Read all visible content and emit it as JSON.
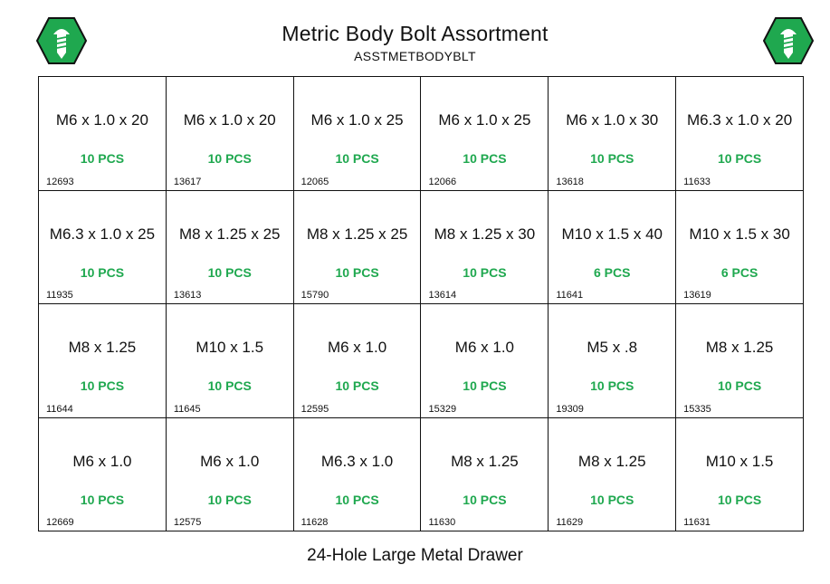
{
  "header": {
    "title": "Metric Body Bolt Assortment",
    "sku": "ASSTMETBODYBLT",
    "logo_icon": "screw-hex-icon",
    "logo_color": "#1fa84f"
  },
  "accent_color": "#1fa84f",
  "drawer": {
    "cells": [
      {
        "size": "M6 x 1.0 x 20",
        "qty": "10 PCS",
        "part": "12693"
      },
      {
        "size": "M6 x 1.0 x 20",
        "qty": "10 PCS",
        "part": "13617"
      },
      {
        "size": "M6 x 1.0 x 25",
        "qty": "10 PCS",
        "part": "12065"
      },
      {
        "size": "M6 x 1.0 x 25",
        "qty": "10 PCS",
        "part": "12066"
      },
      {
        "size": "M6 x 1.0 x 30",
        "qty": "10 PCS",
        "part": "13618"
      },
      {
        "size": "M6.3 x 1.0 x 20",
        "qty": "10 PCS",
        "part": "11633"
      },
      {
        "size": "M6.3 x 1.0 x 25",
        "qty": "10 PCS",
        "part": "11935"
      },
      {
        "size": "M8 x 1.25 x 25",
        "qty": "10 PCS",
        "part": "13613"
      },
      {
        "size": "M8 x 1.25 x 25",
        "qty": "10 PCS",
        "part": "15790"
      },
      {
        "size": "M8 x 1.25 x 30",
        "qty": "10 PCS",
        "part": "13614"
      },
      {
        "size": "M10 x 1.5 x 40",
        "qty": "6 PCS",
        "part": "11641"
      },
      {
        "size": "M10 x 1.5 x 30",
        "qty": "6 PCS",
        "part": "13619"
      },
      {
        "size": "M8 x 1.25",
        "qty": "10 PCS",
        "part": "11644"
      },
      {
        "size": "M10 x 1.5",
        "qty": "10 PCS",
        "part": "11645"
      },
      {
        "size": "M6 x 1.0",
        "qty": "10 PCS",
        "part": "12595"
      },
      {
        "size": "M6 x 1.0",
        "qty": "10 PCS",
        "part": "15329"
      },
      {
        "size": "M5 x .8",
        "qty": "10 PCS",
        "part": "19309"
      },
      {
        "size": "M8 x 1.25",
        "qty": "10 PCS",
        "part": "15335"
      },
      {
        "size": "M6 x 1.0",
        "qty": "10 PCS",
        "part": "12669"
      },
      {
        "size": "M6 x 1.0",
        "qty": "10 PCS",
        "part": "12575"
      },
      {
        "size": "M6.3 x 1.0",
        "qty": "10 PCS",
        "part": "11628"
      },
      {
        "size": "M8 x 1.25",
        "qty": "10 PCS",
        "part": "11630"
      },
      {
        "size": "M8 x 1.25",
        "qty": "10 PCS",
        "part": "11629"
      },
      {
        "size": "M10 x 1.5",
        "qty": "10 PCS",
        "part": "11631"
      }
    ]
  },
  "footer": {
    "caption": "24-Hole Large Metal Drawer"
  }
}
